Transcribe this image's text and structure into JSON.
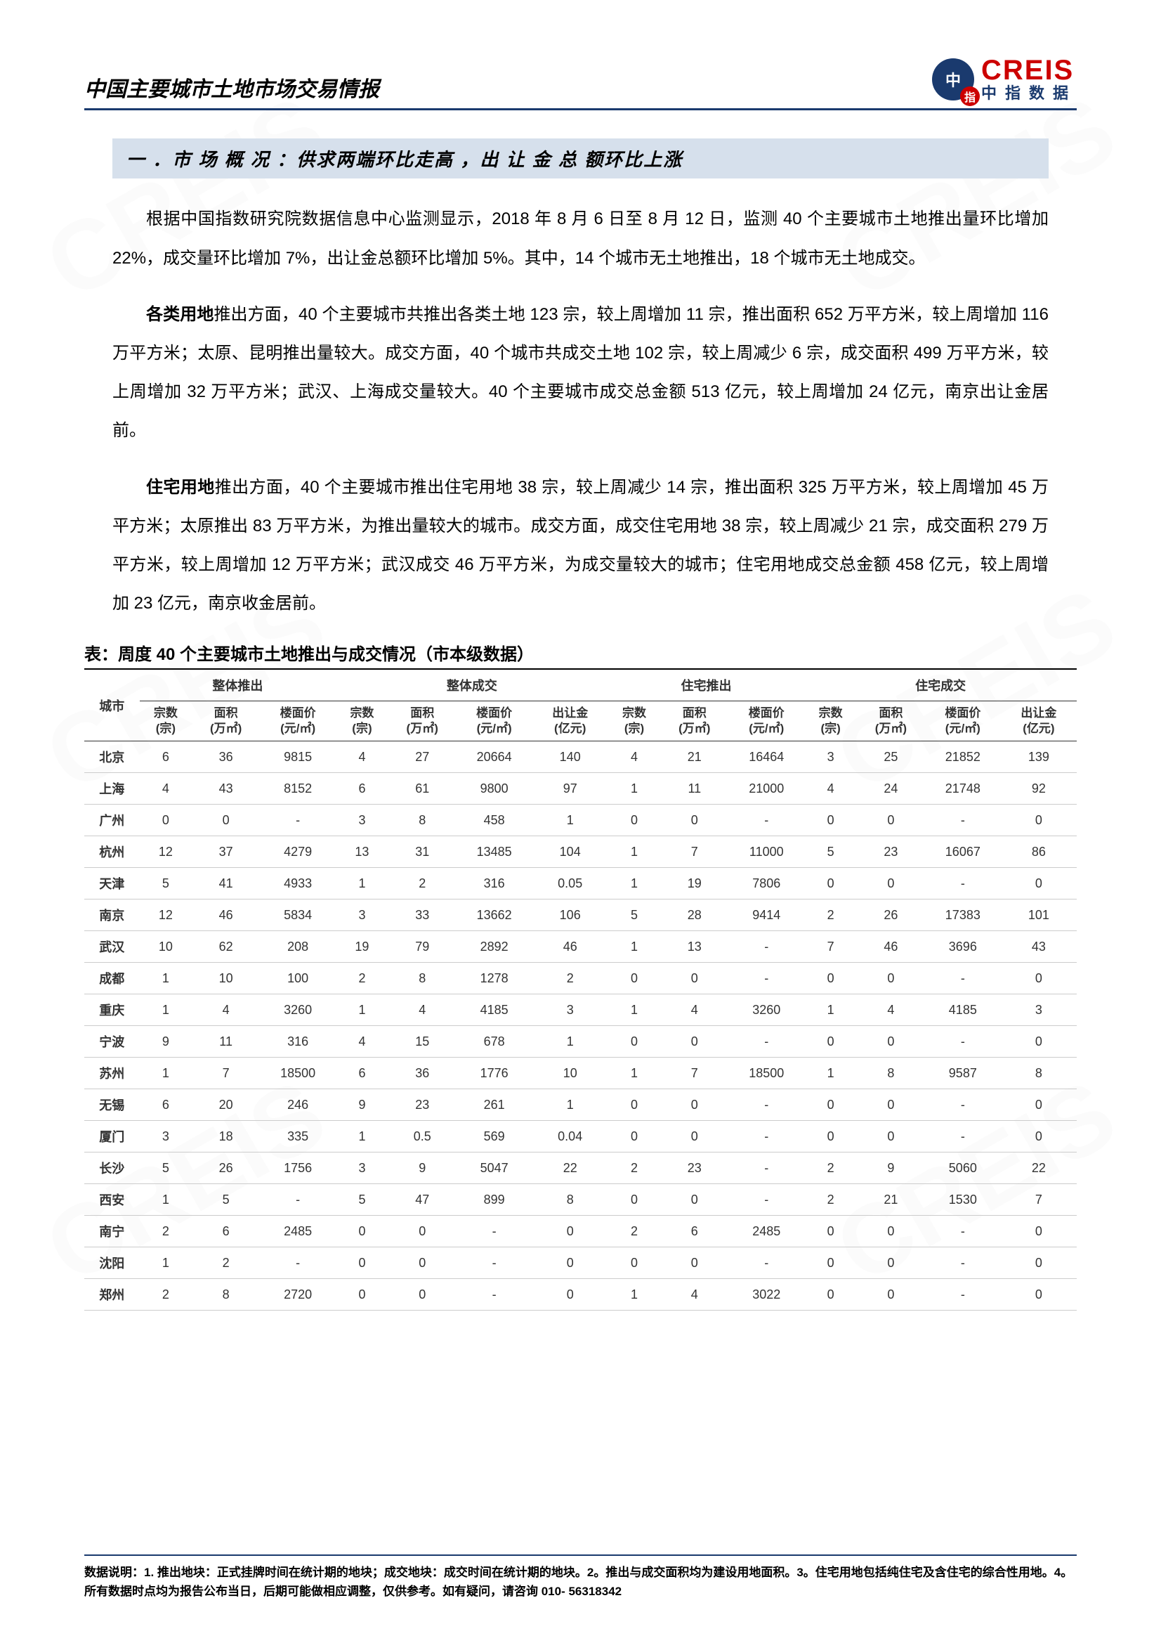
{
  "header": {
    "title": "中国主要城市土地市场交易情报",
    "logo_main": "CREIS",
    "logo_sub": "中指数据",
    "logo_circle": "中"
  },
  "section_heading": "一 ．市 场 概 况 ：供求两端环比走高 ，出 让 金 总 额环比上涨",
  "paragraphs": {
    "p1": "根据中国指数研究院数据信息中心监测显示，2018 年 8 月 6 日至 8 月 12 日，监测 40 个主要城市土地推出量环比增加 22%，成交量环比增加 7%，出让金总额环比增加 5%。其中，14 个城市无土地推出，18 个城市无土地成交。",
    "p2_label": "各类用地",
    "p2": "推出方面，40 个主要城市共推出各类土地 123 宗，较上周增加 11 宗，推出面积 652 万平方米，较上周增加 116 万平方米；太原、昆明推出量较大。成交方面，40 个城市共成交土地 102 宗，较上周减少 6 宗，成交面积 499 万平方米，较上周增加 32 万平方米；武汉、上海成交量较大。40 个主要城市成交总金额 513 亿元，较上周增加 24 亿元，南京出让金居前。",
    "p3_label": "住宅用地",
    "p3": "推出方面，40 个主要城市推出住宅用地 38 宗，较上周减少 14 宗，推出面积 325 万平方米，较上周增加 45 万平方米；太原推出 83 万平方米，为推出量较大的城市。成交方面，成交住宅用地 38 宗，较上周减少 21 宗，成交面积 279 万平方米，较上周增加 12 万平方米；武汉成交 46 万平方米，为成交量较大的城市；住宅用地成交总金额 458 亿元，较上周增加 23 亿元，南京收金居前。"
  },
  "table": {
    "caption": "表：周度 40 个主要城市土地推出与成交情况（市本级数据）",
    "group_headers": [
      "城市",
      "整体推出",
      "整体成交",
      "住宅推出",
      "住宅成交"
    ],
    "sub_headers": {
      "city": "城市",
      "zs": "宗数\n(宗)",
      "mj": "面积\n(万㎡)",
      "lmj": "楼面价\n(元/㎡)",
      "crj": "出让金\n(亿元)"
    },
    "rows": [
      {
        "city": "北京",
        "a": [
          "6",
          "36",
          "9815"
        ],
        "b": [
          "4",
          "27",
          "20664",
          "140"
        ],
        "c": [
          "4",
          "21",
          "16464"
        ],
        "d": [
          "3",
          "25",
          "21852",
          "139"
        ]
      },
      {
        "city": "上海",
        "a": [
          "4",
          "43",
          "8152"
        ],
        "b": [
          "6",
          "61",
          "9800",
          "97"
        ],
        "c": [
          "1",
          "11",
          "21000"
        ],
        "d": [
          "4",
          "24",
          "21748",
          "92"
        ]
      },
      {
        "city": "广州",
        "a": [
          "0",
          "0",
          "-"
        ],
        "b": [
          "3",
          "8",
          "458",
          "1"
        ],
        "c": [
          "0",
          "0",
          "-"
        ],
        "d": [
          "0",
          "0",
          "-",
          "0"
        ]
      },
      {
        "city": "杭州",
        "a": [
          "12",
          "37",
          "4279"
        ],
        "b": [
          "13",
          "31",
          "13485",
          "104"
        ],
        "c": [
          "1",
          "7",
          "11000"
        ],
        "d": [
          "5",
          "23",
          "16067",
          "86"
        ]
      },
      {
        "city": "天津",
        "a": [
          "5",
          "41",
          "4933"
        ],
        "b": [
          "1",
          "2",
          "316",
          "0.05"
        ],
        "c": [
          "1",
          "19",
          "7806"
        ],
        "d": [
          "0",
          "0",
          "-",
          "0"
        ]
      },
      {
        "city": "南京",
        "a": [
          "12",
          "46",
          "5834"
        ],
        "b": [
          "3",
          "33",
          "13662",
          "106"
        ],
        "c": [
          "5",
          "28",
          "9414"
        ],
        "d": [
          "2",
          "26",
          "17383",
          "101"
        ]
      },
      {
        "city": "武汉",
        "a": [
          "10",
          "62",
          "208"
        ],
        "b": [
          "19",
          "79",
          "2892",
          "46"
        ],
        "c": [
          "1",
          "13",
          "-"
        ],
        "d": [
          "7",
          "46",
          "3696",
          "43"
        ]
      },
      {
        "city": "成都",
        "a": [
          "1",
          "10",
          "100"
        ],
        "b": [
          "2",
          "8",
          "1278",
          "2"
        ],
        "c": [
          "0",
          "0",
          "-"
        ],
        "d": [
          "0",
          "0",
          "-",
          "0"
        ]
      },
      {
        "city": "重庆",
        "a": [
          "1",
          "4",
          "3260"
        ],
        "b": [
          "1",
          "4",
          "4185",
          "3"
        ],
        "c": [
          "1",
          "4",
          "3260"
        ],
        "d": [
          "1",
          "4",
          "4185",
          "3"
        ]
      },
      {
        "city": "宁波",
        "a": [
          "9",
          "11",
          "316"
        ],
        "b": [
          "4",
          "15",
          "678",
          "1"
        ],
        "c": [
          "0",
          "0",
          "-"
        ],
        "d": [
          "0",
          "0",
          "-",
          "0"
        ]
      },
      {
        "city": "苏州",
        "a": [
          "1",
          "7",
          "18500"
        ],
        "b": [
          "6",
          "36",
          "1776",
          "10"
        ],
        "c": [
          "1",
          "7",
          "18500"
        ],
        "d": [
          "1",
          "8",
          "9587",
          "8"
        ]
      },
      {
        "city": "无锡",
        "a": [
          "6",
          "20",
          "246"
        ],
        "b": [
          "9",
          "23",
          "261",
          "1"
        ],
        "c": [
          "0",
          "0",
          "-"
        ],
        "d": [
          "0",
          "0",
          "-",
          "0"
        ]
      },
      {
        "city": "厦门",
        "a": [
          "3",
          "18",
          "335"
        ],
        "b": [
          "1",
          "0.5",
          "569",
          "0.04"
        ],
        "c": [
          "0",
          "0",
          "-"
        ],
        "d": [
          "0",
          "0",
          "-",
          "0"
        ]
      },
      {
        "city": "长沙",
        "a": [
          "5",
          "26",
          "1756"
        ],
        "b": [
          "3",
          "9",
          "5047",
          "22"
        ],
        "c": [
          "2",
          "23",
          "-"
        ],
        "d": [
          "2",
          "9",
          "5060",
          "22"
        ]
      },
      {
        "city": "西安",
        "a": [
          "1",
          "5",
          "-"
        ],
        "b": [
          "5",
          "47",
          "899",
          "8"
        ],
        "c": [
          "0",
          "0",
          "-"
        ],
        "d": [
          "2",
          "21",
          "1530",
          "7"
        ]
      },
      {
        "city": "南宁",
        "a": [
          "2",
          "6",
          "2485"
        ],
        "b": [
          "0",
          "0",
          "-",
          "0"
        ],
        "c": [
          "2",
          "6",
          "2485"
        ],
        "d": [
          "0",
          "0",
          "-",
          "0"
        ]
      },
      {
        "city": "沈阳",
        "a": [
          "1",
          "2",
          "-"
        ],
        "b": [
          "0",
          "0",
          "-",
          "0"
        ],
        "c": [
          "0",
          "0",
          "-"
        ],
        "d": [
          "0",
          "0",
          "-",
          "0"
        ]
      },
      {
        "city": "郑州",
        "a": [
          "2",
          "8",
          "2720"
        ],
        "b": [
          "0",
          "0",
          "-",
          "0"
        ],
        "c": [
          "1",
          "4",
          "3022"
        ],
        "d": [
          "0",
          "0",
          "-",
          "0"
        ]
      }
    ]
  },
  "footer": "数据说明：1. 推出地块：正式挂牌时间在统计期的地块；成交地块：成交时间在统计期的地块。2。推出与成交面积均为建设用地面积。3。住宅用地包括纯住宅及含住宅的综合性用地。4。所有数据时点均为报告公布当日，后期可能做相应调整，仅供参考。如有疑问，请咨询 010- 56318342",
  "watermark": "CREIS"
}
